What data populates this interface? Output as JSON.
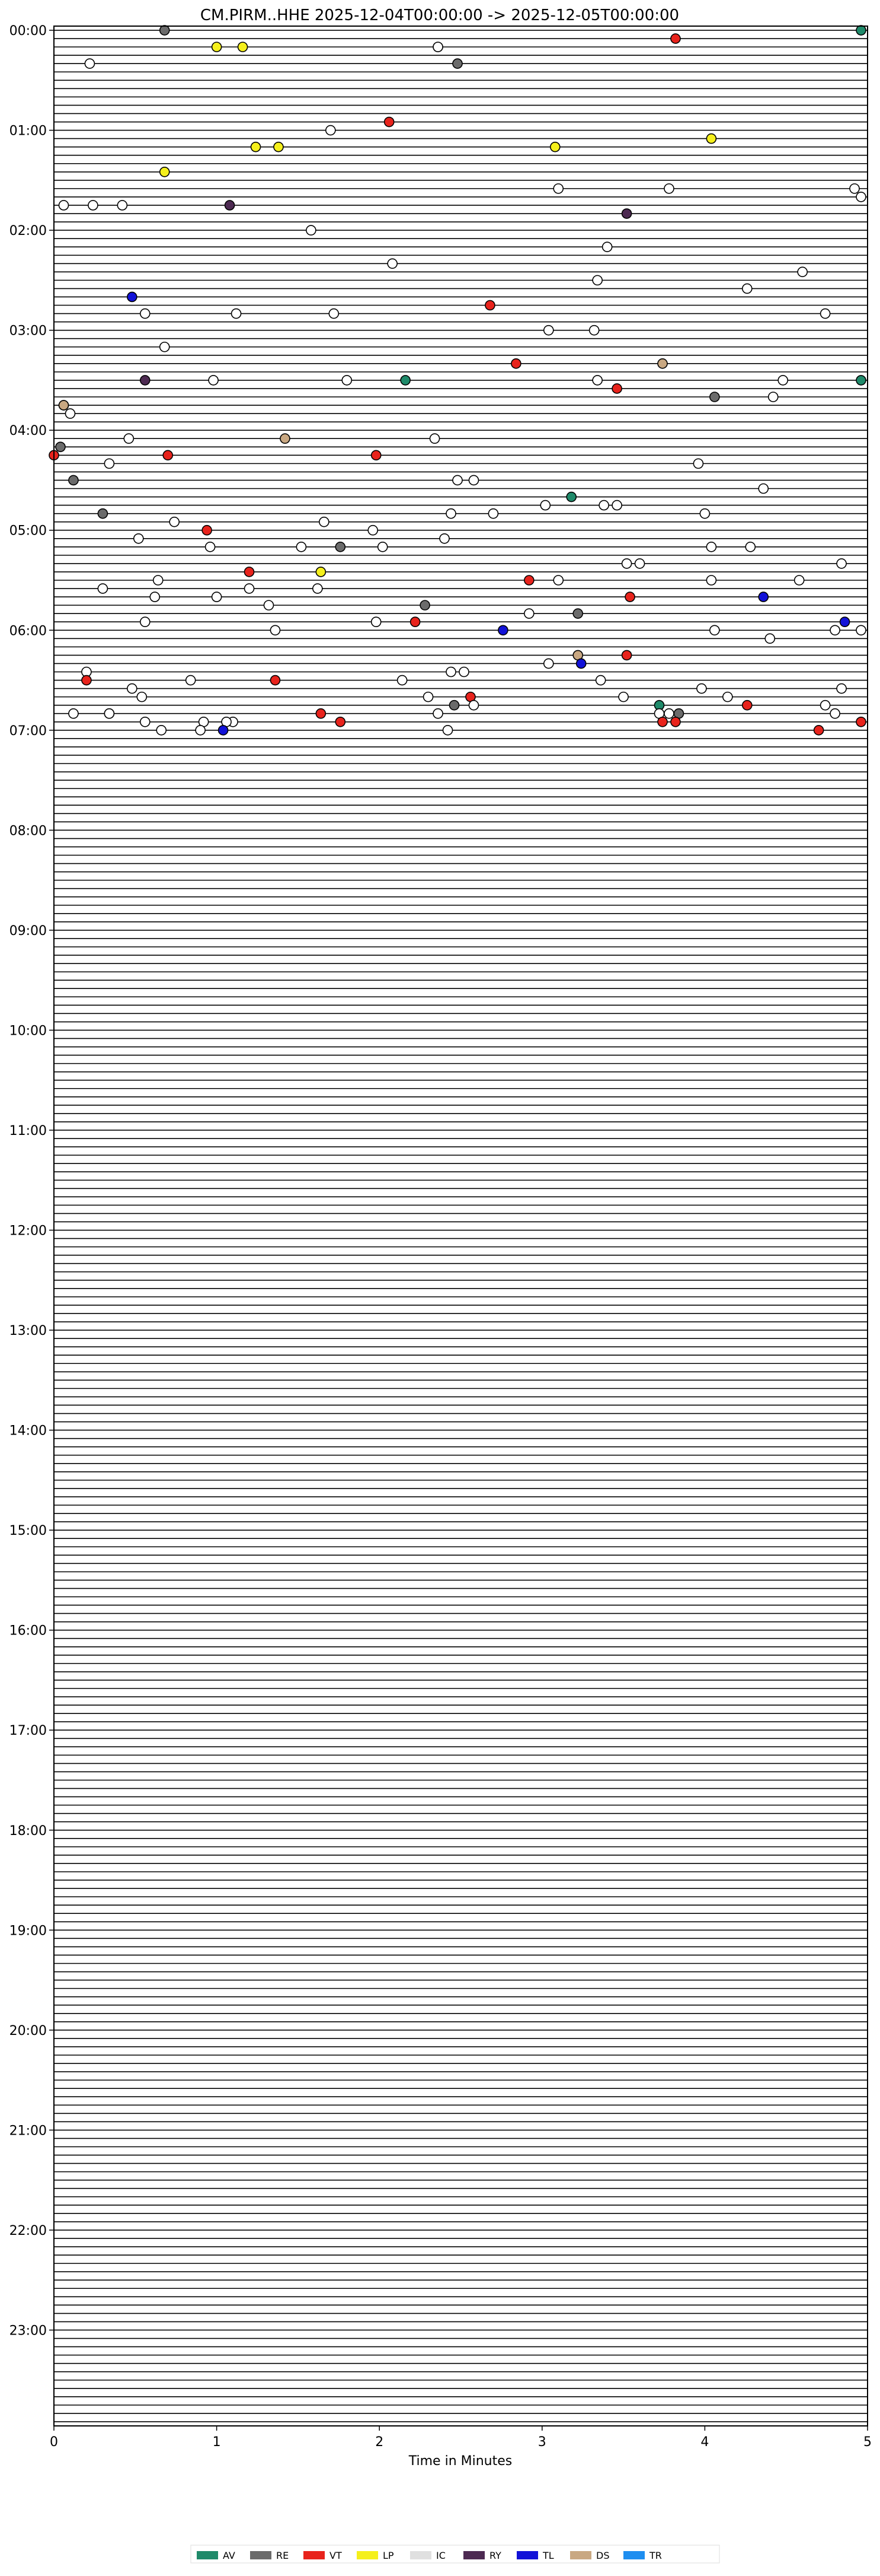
{
  "chart_data": {
    "type": "scatter",
    "title": "CM.PIRM..HHE  2025-12-04T00:00:00 -> 2025-12-05T00:00:00",
    "xlabel": "Time in Minutes",
    "ylabel": "",
    "xlim": [
      0,
      5
    ],
    "x_ticks": [
      "0",
      "1",
      "2",
      "3",
      "4",
      "5"
    ],
    "y_ticks": [
      "00:00",
      "01:00",
      "02:00",
      "03:00",
      "04:00",
      "05:00",
      "06:00",
      "07:00",
      "08:00",
      "09:00",
      "10:00",
      "11:00",
      "12:00",
      "13:00",
      "14:00",
      "15:00",
      "16:00",
      "17:00",
      "18:00",
      "19:00",
      "20:00",
      "21:00",
      "22:00",
      "23:00"
    ],
    "rows": 288,
    "row_minutes": 5,
    "grid": false,
    "legend_position": "bottom-center",
    "legend": [
      {
        "code": "AV",
        "color": "#1f8a6a"
      },
      {
        "code": "RE",
        "color": "#6b6b6b"
      },
      {
        "code": "VT",
        "color": "#e8231c"
      },
      {
        "code": "LP",
        "color": "#f5f01c"
      },
      {
        "code": "IC",
        "color": "#e0e0e0"
      },
      {
        "code": "RY",
        "color": "#4d2a52"
      },
      {
        "code": "TL",
        "color": "#1212d8"
      },
      {
        "code": "DS",
        "color": "#c9a882"
      },
      {
        "code": "TR",
        "color": "#1e8ef0"
      }
    ],
    "events": [
      {
        "t": "00:04",
        "x": 4.96,
        "type": "AV"
      },
      {
        "t": "00:04",
        "x": 0.68,
        "type": "RE"
      },
      {
        "t": "00:08",
        "x": 3.82,
        "type": "VT"
      },
      {
        "t": "00:12",
        "x": 1.16,
        "type": "LP"
      },
      {
        "t": "00:12",
        "x": 1.0,
        "type": "LP"
      },
      {
        "t": "00:12",
        "x": 2.36,
        "type": "LP"
      },
      {
        "t": "00:12",
        "x": 2.36,
        "type": "IC"
      },
      {
        "t": "00:22",
        "x": 0.22,
        "type": "IC"
      },
      {
        "t": "00:22",
        "x": 2.48,
        "type": "RE"
      },
      {
        "t": "00:56",
        "x": 2.06,
        "type": "VT"
      },
      {
        "t": "01:02",
        "x": 1.7,
        "type": "IC"
      },
      {
        "t": "01:06",
        "x": 4.04,
        "type": "LP"
      },
      {
        "t": "01:10",
        "x": 1.24,
        "type": "LP"
      },
      {
        "t": "01:10",
        "x": 1.38,
        "type": "LP"
      },
      {
        "t": "01:10",
        "x": 3.08,
        "type": "LP"
      },
      {
        "t": "01:28",
        "x": 0.68,
        "type": "LP"
      },
      {
        "t": "01:38",
        "x": 3.1,
        "type": "IC"
      },
      {
        "t": "01:38",
        "x": 3.78,
        "type": "IC"
      },
      {
        "t": "01:38",
        "x": 4.92,
        "type": "IC"
      },
      {
        "t": "01:44",
        "x": 4.96,
        "type": "IC"
      },
      {
        "t": "01:48",
        "x": 0.06,
        "type": "IC"
      },
      {
        "t": "01:48",
        "x": 0.24,
        "type": "IC"
      },
      {
        "t": "01:48",
        "x": 0.42,
        "type": "IC"
      },
      {
        "t": "01:48",
        "x": 1.08,
        "type": "RY"
      },
      {
        "t": "01:52",
        "x": 3.52,
        "type": "RY"
      },
      {
        "t": "02:04",
        "x": 1.58,
        "type": "IC"
      },
      {
        "t": "02:14",
        "x": 3.4,
        "type": "IC"
      },
      {
        "t": "02:20",
        "x": 2.08,
        "type": "IC"
      },
      {
        "t": "02:28",
        "x": 4.6,
        "type": "IC"
      },
      {
        "t": "02:32",
        "x": 3.34,
        "type": "IC"
      },
      {
        "t": "02:38",
        "x": 4.26,
        "type": "IC"
      },
      {
        "t": "02:42",
        "x": 0.48,
        "type": "TL"
      },
      {
        "t": "02:46",
        "x": 2.68,
        "type": "VT"
      },
      {
        "t": "02:50",
        "x": 0.56,
        "type": "IC"
      },
      {
        "t": "02:50",
        "x": 1.72,
        "type": "IC"
      },
      {
        "t": "02:50",
        "x": 4.74,
        "type": "IC"
      },
      {
        "t": "02:54",
        "x": 1.12,
        "type": "IC"
      },
      {
        "t": "03:04",
        "x": 3.04,
        "type": "IC"
      },
      {
        "t": "03:04",
        "x": 3.32,
        "type": "IC"
      },
      {
        "t": "03:14",
        "x": 0.68,
        "type": "IC"
      },
      {
        "t": "03:20",
        "x": 2.84,
        "type": "VT"
      },
      {
        "t": "03:20",
        "x": 3.74,
        "type": "DS"
      },
      {
        "t": "03:30",
        "x": 0.56,
        "type": "RY"
      },
      {
        "t": "03:30",
        "x": 1.8,
        "type": "IC"
      },
      {
        "t": "03:30",
        "x": 2.16,
        "type": "AV"
      },
      {
        "t": "03:30",
        "x": 3.34,
        "type": "IC"
      },
      {
        "t": "03:30",
        "x": 4.48,
        "type": "IC"
      },
      {
        "t": "03:34",
        "x": 0.98,
        "type": "IC"
      },
      {
        "t": "03:34",
        "x": 4.96,
        "type": "AV"
      },
      {
        "t": "03:38",
        "x": 3.46,
        "type": "VT"
      },
      {
        "t": "03:42",
        "x": 4.06,
        "type": "RE"
      },
      {
        "t": "03:42",
        "x": 4.42,
        "type": "IC"
      },
      {
        "t": "03:46",
        "x": 0.06,
        "type": "IC"
      },
      {
        "t": "03:46",
        "x": 0.06,
        "type": "DS"
      },
      {
        "t": "03:50",
        "x": 0.1,
        "type": "IC"
      },
      {
        "t": "04:08",
        "x": 0.46,
        "type": "IC"
      },
      {
        "t": "04:08",
        "x": 1.42,
        "type": "DS"
      },
      {
        "t": "04:08",
        "x": 2.34,
        "type": "IC"
      },
      {
        "t": "04:12",
        "x": 0.04,
        "type": "RE"
      },
      {
        "t": "04:16",
        "x": 0.0,
        "type": "VT"
      },
      {
        "t": "04:16",
        "x": 0.7,
        "type": "VT"
      },
      {
        "t": "04:16",
        "x": 1.98,
        "type": "VT"
      },
      {
        "t": "04:20",
        "x": 3.96,
        "type": "IC"
      },
      {
        "t": "04:24",
        "x": 0.34,
        "type": "IC"
      },
      {
        "t": "04:30",
        "x": 0.12,
        "type": "RE"
      },
      {
        "t": "04:30",
        "x": 2.48,
        "type": "IC"
      },
      {
        "t": "04:34",
        "x": 2.58,
        "type": "IC"
      },
      {
        "t": "04:38",
        "x": 4.36,
        "type": "IC"
      },
      {
        "t": "04:44",
        "x": 3.18,
        "type": "AV"
      },
      {
        "t": "04:48",
        "x": 3.02,
        "type": "IC"
      },
      {
        "t": "04:48",
        "x": 3.38,
        "type": "IC"
      },
      {
        "t": "04:48",
        "x": 3.46,
        "type": "IC"
      },
      {
        "t": "04:52",
        "x": 0.3,
        "type": "RE"
      },
      {
        "t": "04:52",
        "x": 2.44,
        "type": "IC"
      },
      {
        "t": "04:52",
        "x": 2.7,
        "type": "IC"
      },
      {
        "t": "04:52",
        "x": 4.0,
        "type": "IC"
      },
      {
        "t": "04:58",
        "x": 0.74,
        "type": "IC"
      },
      {
        "t": "04:58",
        "x": 1.66,
        "type": "IC"
      },
      {
        "t": "05:02",
        "x": 0.94,
        "type": "VT"
      },
      {
        "t": "05:02",
        "x": 1.96,
        "type": "IC"
      },
      {
        "t": "05:06",
        "x": 0.52,
        "type": "IC"
      },
      {
        "t": "05:06",
        "x": 2.4,
        "type": "IC"
      },
      {
        "t": "05:10",
        "x": 0.96,
        "type": "IC"
      },
      {
        "t": "05:10",
        "x": 4.04,
        "type": "IC"
      },
      {
        "t": "05:14",
        "x": 1.52,
        "type": "IC"
      },
      {
        "t": "05:14",
        "x": 1.76,
        "type": "RE"
      },
      {
        "t": "05:14",
        "x": 2.02,
        "type": "IC"
      },
      {
        "t": "05:14",
        "x": 4.28,
        "type": "IC"
      },
      {
        "t": "05:20",
        "x": 3.52,
        "type": "IC"
      },
      {
        "t": "05:20",
        "x": 3.6,
        "type": "IC"
      },
      {
        "t": "05:20",
        "x": 4.84,
        "type": "IC"
      },
      {
        "t": "05:26",
        "x": 1.2,
        "type": "VT"
      },
      {
        "t": "05:26",
        "x": 1.64,
        "type": "LP"
      },
      {
        "t": "05:30",
        "x": 4.58,
        "type": "IC"
      },
      {
        "t": "05:34",
        "x": 0.64,
        "type": "IC"
      },
      {
        "t": "05:34",
        "x": 2.92,
        "type": "VT"
      },
      {
        "t": "05:34",
        "x": 3.1,
        "type": "IC"
      },
      {
        "t": "05:34",
        "x": 4.04,
        "type": "IC"
      },
      {
        "t": "05:36",
        "x": 0.3,
        "type": "IC"
      },
      {
        "t": "05:38",
        "x": 1.2,
        "type": "IC"
      },
      {
        "t": "05:38",
        "x": 1.62,
        "type": "IC"
      },
      {
        "t": "05:42",
        "x": 1.0,
        "type": "IC"
      },
      {
        "t": "05:44",
        "x": 0.62,
        "type": "IC"
      },
      {
        "t": "05:44",
        "x": 3.54,
        "type": "VT"
      },
      {
        "t": "05:44",
        "x": 4.36,
        "type": "TL"
      },
      {
        "t": "05:48",
        "x": 1.32,
        "type": "IC"
      },
      {
        "t": "05:48",
        "x": 2.28,
        "type": "RE"
      },
      {
        "t": "05:52",
        "x": 2.92,
        "type": "IC"
      },
      {
        "t": "05:52",
        "x": 3.22,
        "type": "RE"
      },
      {
        "t": "05:58",
        "x": 0.56,
        "type": "IC"
      },
      {
        "t": "05:58",
        "x": 1.98,
        "type": "IC"
      },
      {
        "t": "05:58",
        "x": 2.22,
        "type": "VT"
      },
      {
        "t": "05:58",
        "x": 4.86,
        "type": "TL"
      },
      {
        "t": "06:02",
        "x": 1.36,
        "type": "IC"
      },
      {
        "t": "06:02",
        "x": 4.06,
        "type": "IC"
      },
      {
        "t": "06:04",
        "x": 2.76,
        "type": "TL"
      },
      {
        "t": "06:04",
        "x": 4.8,
        "type": "IC"
      },
      {
        "t": "06:04",
        "x": 4.96,
        "type": "IC"
      },
      {
        "t": "06:08",
        "x": 4.4,
        "type": "IC"
      },
      {
        "t": "06:16",
        "x": 3.22,
        "type": "DS"
      },
      {
        "t": "06:16",
        "x": 3.52,
        "type": "VT"
      },
      {
        "t": "06:20",
        "x": 3.24,
        "type": "TL"
      },
      {
        "t": "06:22",
        "x": 3.04,
        "type": "IC"
      },
      {
        "t": "06:26",
        "x": 0.2,
        "type": "IC"
      },
      {
        "t": "06:26",
        "x": 2.44,
        "type": "IC"
      },
      {
        "t": "06:28",
        "x": 2.52,
        "type": "IC"
      },
      {
        "t": "06:30",
        "x": 0.84,
        "type": "IC"
      },
      {
        "t": "06:32",
        "x": 0.2,
        "type": "VT"
      },
      {
        "t": "06:34",
        "x": 1.36,
        "type": "VT"
      },
      {
        "t": "06:34",
        "x": 2.14,
        "type": "IC"
      },
      {
        "t": "06:34",
        "x": 3.36,
        "type": "IC"
      },
      {
        "t": "06:36",
        "x": 0.48,
        "type": "IC"
      },
      {
        "t": "06:38",
        "x": 3.98,
        "type": "IC"
      },
      {
        "t": "06:38",
        "x": 4.84,
        "type": "IC"
      },
      {
        "t": "06:40",
        "x": 4.14,
        "type": "IC"
      },
      {
        "t": "06:40",
        "x": 2.3,
        "type": "IC"
      },
      {
        "t": "06:42",
        "x": 0.54,
        "type": "IC"
      },
      {
        "t": "06:42",
        "x": 2.56,
        "type": "VT"
      },
      {
        "t": "06:44",
        "x": 3.5,
        "type": "IC"
      },
      {
        "t": "06:46",
        "x": 3.72,
        "type": "AV"
      },
      {
        "t": "06:46",
        "x": 4.26,
        "type": "VT"
      },
      {
        "t": "06:48",
        "x": 2.46,
        "type": "RE"
      },
      {
        "t": "06:48",
        "x": 2.58,
        "type": "IC"
      },
      {
        "t": "06:48",
        "x": 4.74,
        "type": "IC"
      },
      {
        "t": "06:50",
        "x": 0.12,
        "type": "IC"
      },
      {
        "t": "06:50",
        "x": 0.34,
        "type": "IC"
      },
      {
        "t": "06:50",
        "x": 4.8,
        "type": "IC"
      },
      {
        "t": "06:52",
        "x": 1.64,
        "type": "VT"
      },
      {
        "t": "06:52",
        "x": 3.72,
        "type": "IC"
      },
      {
        "t": "06:52",
        "x": 3.84,
        "type": "RE"
      },
      {
        "t": "06:54",
        "x": 0.34,
        "type": "IC"
      },
      {
        "t": "06:54",
        "x": 2.36,
        "type": "IC"
      },
      {
        "t": "06:54",
        "x": 3.78,
        "type": "IC"
      },
      {
        "t": "06:56",
        "x": 0.56,
        "type": "IC"
      },
      {
        "t": "06:56",
        "x": 1.1,
        "type": "IC"
      },
      {
        "t": "06:56",
        "x": 3.74,
        "type": "VT"
      },
      {
        "t": "06:56",
        "x": 3.82,
        "type": "VT"
      },
      {
        "t": "06:56",
        "x": 4.96,
        "type": "VT"
      },
      {
        "t": "06:58",
        "x": 0.92,
        "type": "IC"
      },
      {
        "t": "06:58",
        "x": 1.06,
        "type": "IC"
      },
      {
        "t": "06:58",
        "x": 1.76,
        "type": "VT"
      },
      {
        "t": "07:00",
        "x": 0.9,
        "type": "IC"
      },
      {
        "t": "07:00",
        "x": 2.42,
        "type": "IC"
      },
      {
        "t": "07:00",
        "x": 4.7,
        "type": "VT"
      },
      {
        "t": "07:02",
        "x": 0.66,
        "type": "IC"
      },
      {
        "t": "07:02",
        "x": 1.04,
        "type": "TL"
      }
    ]
  }
}
